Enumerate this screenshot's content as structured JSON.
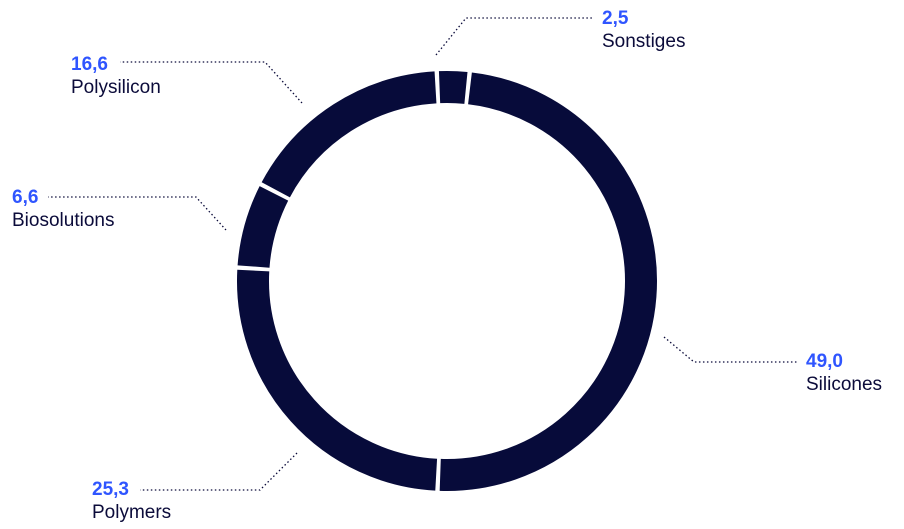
{
  "chart_data": {
    "type": "pie",
    "variant": "donut",
    "segments": [
      {
        "name": "Sonstiges",
        "value": "2,5",
        "value_num": 2.5
      },
      {
        "name": "Silicones",
        "value": "49,0",
        "value_num": 49.0
      },
      {
        "name": "Polymers",
        "value": "25,3",
        "value_num": 25.3
      },
      {
        "name": "Biosolutions",
        "value": "6,6",
        "value_num": 6.6
      },
      {
        "name": "Polysilicon",
        "value": "16,6",
        "value_num": 16.6
      }
    ],
    "colors": {
      "ring": "#070b3a",
      "value_text": "#2f55ff",
      "name_text": "#0b0b3a",
      "leader": "#0b0b3a",
      "background": "#ffffff"
    }
  }
}
